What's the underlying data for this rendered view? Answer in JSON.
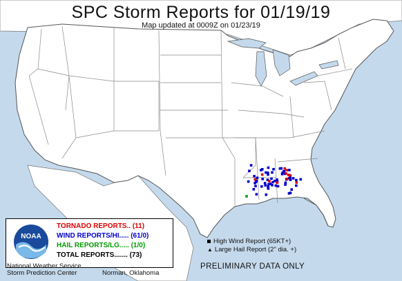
{
  "title": "SPC Storm Reports for 01/19/19",
  "subtitle": "Map updated at 0009Z on 01/23/19",
  "legend": {
    "tornado": "TORNADO REPORTS.. (11)",
    "wind": "WIND REPORTS/HI..... (61/0)",
    "hail": "HAIL REPORTS/LG..... (1/0)",
    "total": "TOTAL REPORTS....... (73)"
  },
  "symbol_key": {
    "high_wind": "High Wind Report (65KT+)",
    "large_hail": "Large Hail Report (2\" dia. +)"
  },
  "organization": {
    "line1": "National Weather Service",
    "line2": "Storm Prediction Center",
    "location": "Norman, Oklahoma"
  },
  "logo_text": "NOAA",
  "preliminary": "PRELIMINARY DATA ONLY",
  "colors": {
    "tornado": "#dd0000",
    "wind": "#0000cc",
    "hail": "#009900",
    "land": "#ffffff",
    "water": "#c4d9ec"
  },
  "reports": {
    "tornado_count": 11,
    "wind_count": 61,
    "hail_count": 1
  }
}
